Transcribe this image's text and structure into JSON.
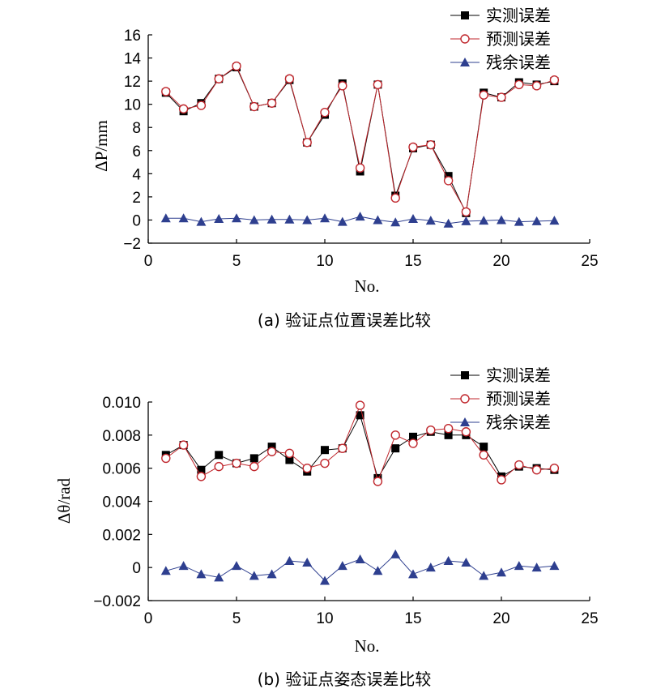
{
  "chart_data": [
    {
      "type": "line",
      "caption": "(a) 验证点位置误差比较",
      "xlabel": "No.",
      "ylabel": "ΔP/mm",
      "xlim": [
        0,
        25
      ],
      "ylim": [
        -2,
        16
      ],
      "x_ticks": [
        "0",
        "5",
        "10",
        "15",
        "20",
        "25"
      ],
      "y_ticks": [
        "−2",
        "0",
        "2",
        "4",
        "6",
        "8",
        "10",
        "12",
        "14",
        "16"
      ],
      "legend_position": "top-right",
      "x": [
        1,
        2,
        3,
        4,
        5,
        6,
        7,
        8,
        9,
        10,
        11,
        12,
        13,
        14,
        15,
        16,
        17,
        18,
        19,
        20,
        21,
        22,
        23
      ],
      "series": [
        {
          "name": "实测误差",
          "marker": "filled-square",
          "color": "#000000",
          "values": [
            11.0,
            9.4,
            10.1,
            12.2,
            13.2,
            9.8,
            10.1,
            12.1,
            6.7,
            9.1,
            11.8,
            4.2,
            11.7,
            2.1,
            6.2,
            6.5,
            3.8,
            0.6,
            11.0,
            10.6,
            11.9,
            11.7,
            12.0
          ]
        },
        {
          "name": "预测误差",
          "marker": "open-circle",
          "color": "#c0272d",
          "values": [
            11.1,
            9.6,
            9.9,
            12.2,
            13.3,
            9.8,
            10.1,
            12.2,
            6.7,
            9.3,
            11.6,
            4.5,
            11.7,
            1.9,
            6.3,
            6.5,
            3.4,
            0.7,
            10.8,
            10.6,
            11.7,
            11.6,
            12.1
          ]
        },
        {
          "name": "残余误差",
          "marker": "filled-triangle",
          "color": "#2e3f8f",
          "values": [
            0.15,
            0.15,
            -0.15,
            0.1,
            0.15,
            0.0,
            0.05,
            0.05,
            0.0,
            0.15,
            -0.15,
            0.3,
            0.0,
            -0.2,
            0.1,
            -0.05,
            -0.3,
            -0.1,
            -0.05,
            0.0,
            -0.15,
            -0.1,
            -0.05
          ]
        }
      ]
    },
    {
      "type": "line",
      "caption": "(b) 验证点姿态误差比较",
      "xlabel": "No.",
      "ylabel": "Δθ/rad",
      "xlim": [
        0,
        25
      ],
      "ylim": [
        -0.002,
        0.01
      ],
      "x_ticks": [
        "0",
        "5",
        "10",
        "15",
        "20",
        "25"
      ],
      "y_ticks": [
        "−0.002",
        "0",
        "0.002",
        "0.004",
        "0.006",
        "0.008",
        "0.010"
      ],
      "legend_position": "top-right",
      "x": [
        1,
        2,
        3,
        4,
        5,
        6,
        7,
        8,
        9,
        10,
        11,
        12,
        13,
        14,
        15,
        16,
        17,
        18,
        19,
        20,
        21,
        22,
        23
      ],
      "series": [
        {
          "name": "实测误差",
          "marker": "filled-square",
          "color": "#000000",
          "values": [
            0.0068,
            0.0074,
            0.0059,
            0.0068,
            0.0063,
            0.0066,
            0.0073,
            0.0065,
            0.0058,
            0.0071,
            0.0072,
            0.0092,
            0.0054,
            0.0072,
            0.0079,
            0.0082,
            0.008,
            0.008,
            0.0073,
            0.0055,
            0.0061,
            0.006,
            0.0059
          ]
        },
        {
          "name": "预测误差",
          "marker": "open-circle",
          "color": "#c0272d",
          "values": [
            0.0066,
            0.0074,
            0.0055,
            0.0061,
            0.0063,
            0.0061,
            0.007,
            0.0069,
            0.006,
            0.0063,
            0.0072,
            0.0098,
            0.0052,
            0.008,
            0.0075,
            0.0083,
            0.0084,
            0.0082,
            0.0068,
            0.0053,
            0.0062,
            0.0059,
            0.006
          ]
        },
        {
          "name": "残余误差",
          "marker": "filled-triangle",
          "color": "#2e3f8f",
          "values": [
            -0.0002,
            0.0001,
            -0.0004,
            -0.0006,
            0.0001,
            -0.0005,
            -0.0004,
            0.0004,
            0.0003,
            -0.0008,
            0.0001,
            0.0005,
            -0.0002,
            0.0008,
            -0.0004,
            0.0,
            0.0004,
            0.0003,
            -0.0005,
            -0.0003,
            0.0001,
            0.0,
            0.0001
          ]
        }
      ]
    }
  ]
}
